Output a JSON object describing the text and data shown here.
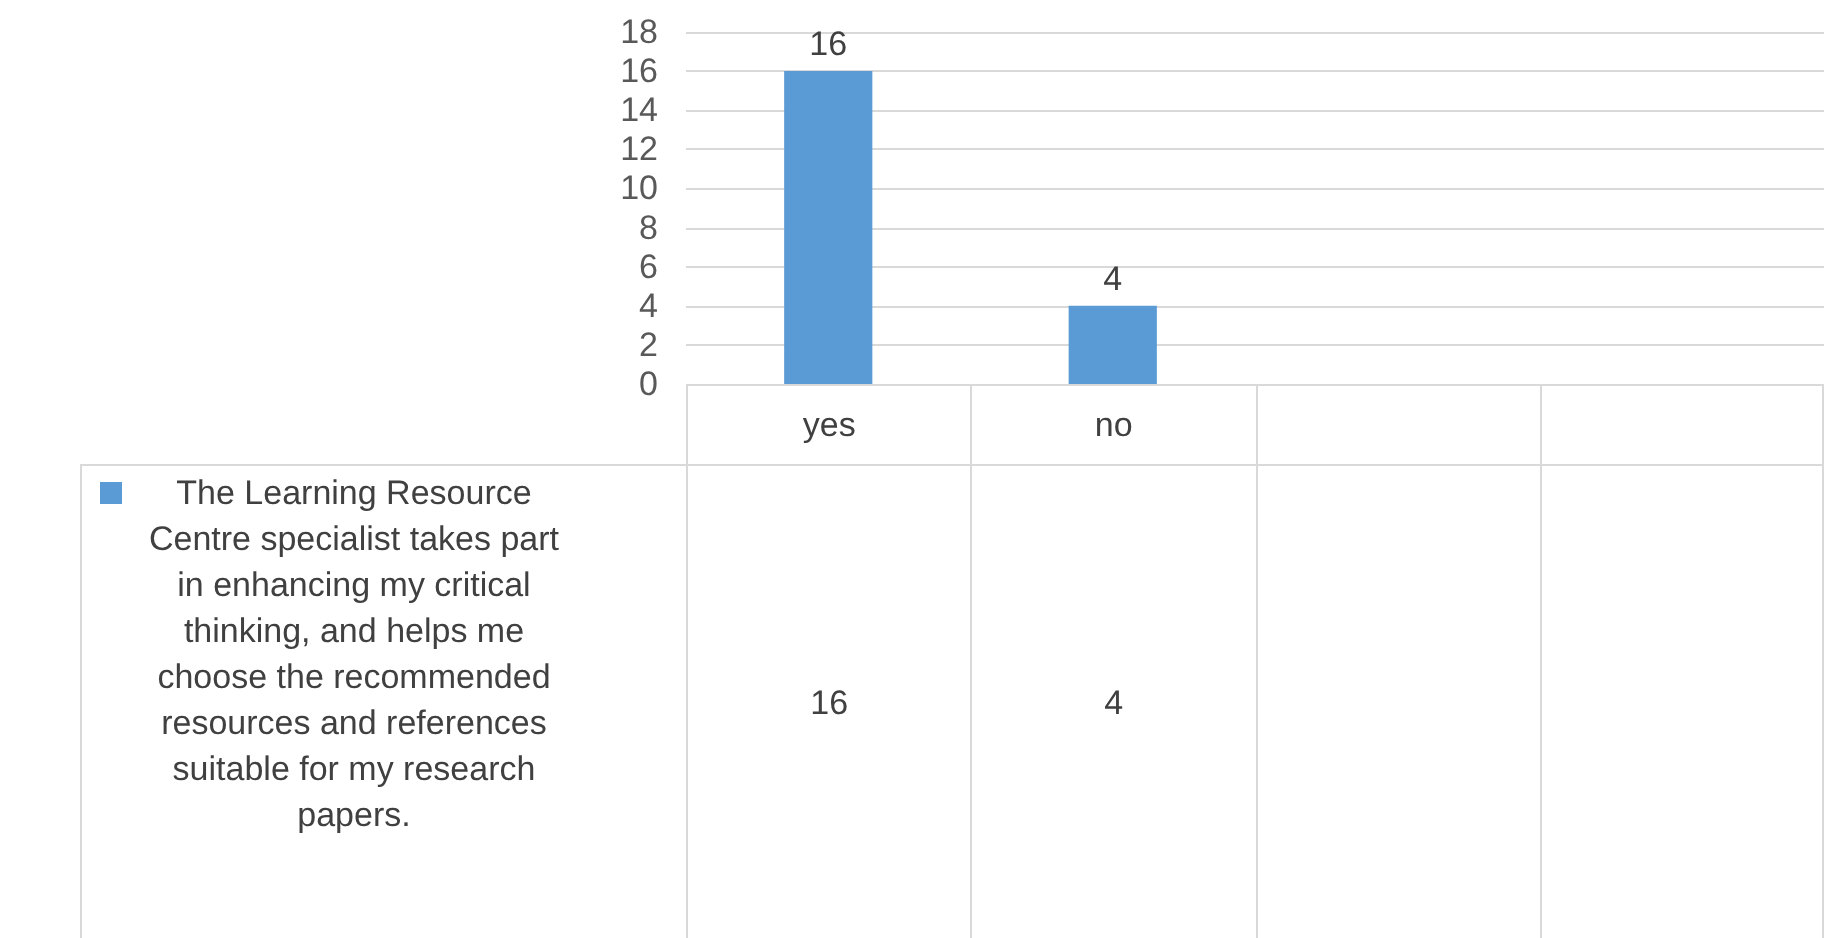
{
  "chart_data": {
    "type": "bar",
    "categories": [
      "yes",
      "no",
      null,
      null
    ],
    "series": [
      {
        "name": "The Learning Resource Centre specialist takes part in enhancing my critical thinking, and helps me choose the recommended resources and references suitable for my research papers.",
        "color": "#5b9bd5",
        "values": [
          16,
          4,
          null,
          null
        ],
        "value_labels": [
          "16",
          "4",
          null,
          null
        ]
      }
    ],
    "ylim": [
      0,
      18
    ],
    "yticks": [
      0,
      2,
      4,
      6,
      8,
      10,
      12,
      14,
      16,
      18
    ],
    "annotations": [
      "16",
      "4"
    ],
    "grid": "y",
    "legend": "bottom"
  }
}
